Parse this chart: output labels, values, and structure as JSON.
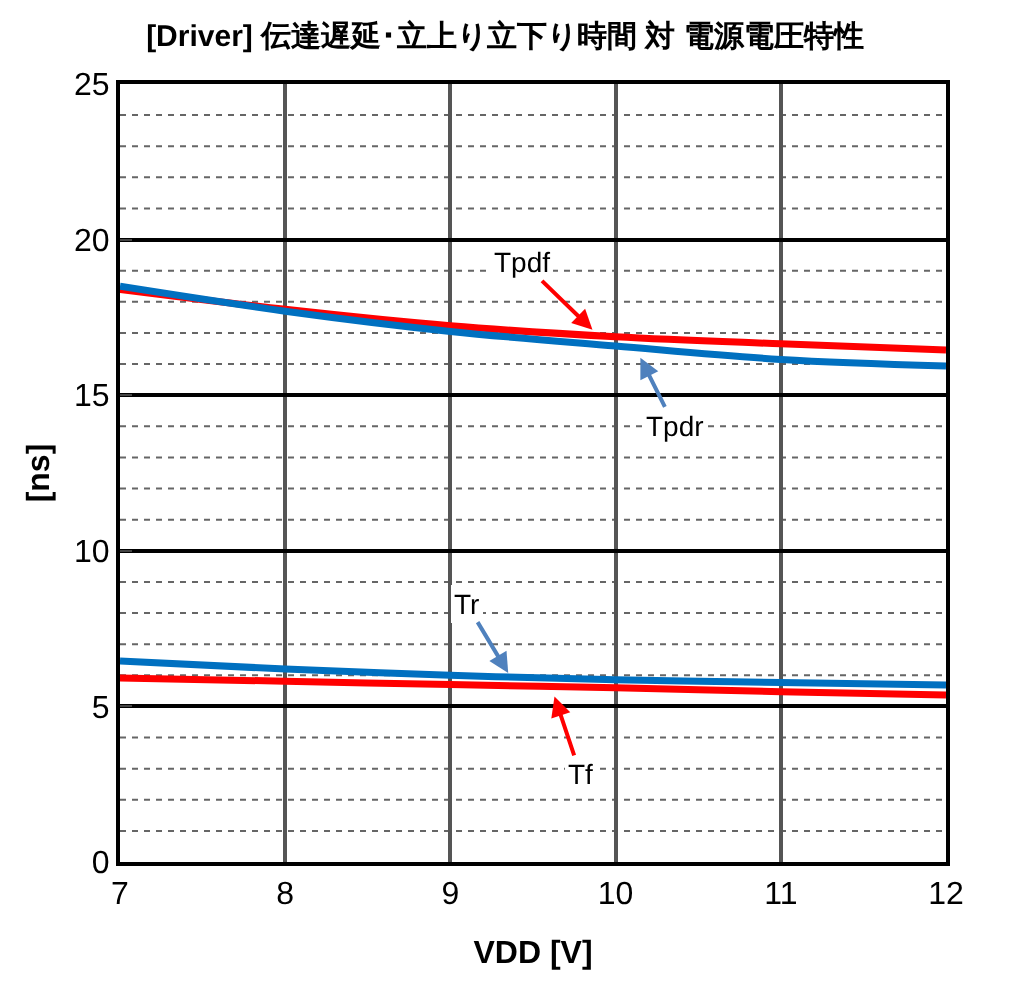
{
  "chart_data": {
    "type": "line",
    "title": "[Driver] 伝達遅延･立上り立下り時間 対 電源電圧特性",
    "xlabel": "VDD [V]",
    "ylabel": "[ns]",
    "x": [
      7,
      8,
      9,
      10,
      11,
      12
    ],
    "xlim": [
      7,
      12
    ],
    "xticks": [
      7,
      8,
      9,
      10,
      11,
      12
    ],
    "ylim": [
      0,
      25
    ],
    "yticks": [
      0,
      5,
      10,
      15,
      20,
      25
    ],
    "grid": true,
    "marker": "none",
    "line_style": "solid",
    "series": [
      {
        "color": "#ff0000",
        "values": [
          18.4,
          17.76,
          17.23,
          16.88,
          16.65,
          16.45
        ]
      },
      {
        "color": "#0070c0",
        "values": [
          18.5,
          17.7,
          17.05,
          16.58,
          16.15,
          15.94
        ]
      },
      {
        "color": "#0070c0",
        "values": [
          6.46,
          6.2,
          6.0,
          5.86,
          5.77,
          5.69
        ]
      },
      {
        "color": "#ff0000",
        "values": [
          5.91,
          5.81,
          5.7,
          5.6,
          5.47,
          5.37
        ]
      }
    ],
    "annotations": [
      {
        "text": "Tpdf",
        "x": 9.86,
        "y": 17.1
      },
      {
        "text": "Tpdr",
        "x": 10.15,
        "y": 16.2
      },
      {
        "text": "Tr",
        "x": 9.35,
        "y": 6.07
      },
      {
        "text": "Tf",
        "x": 9.63,
        "y": 5.32
      }
    ]
  }
}
